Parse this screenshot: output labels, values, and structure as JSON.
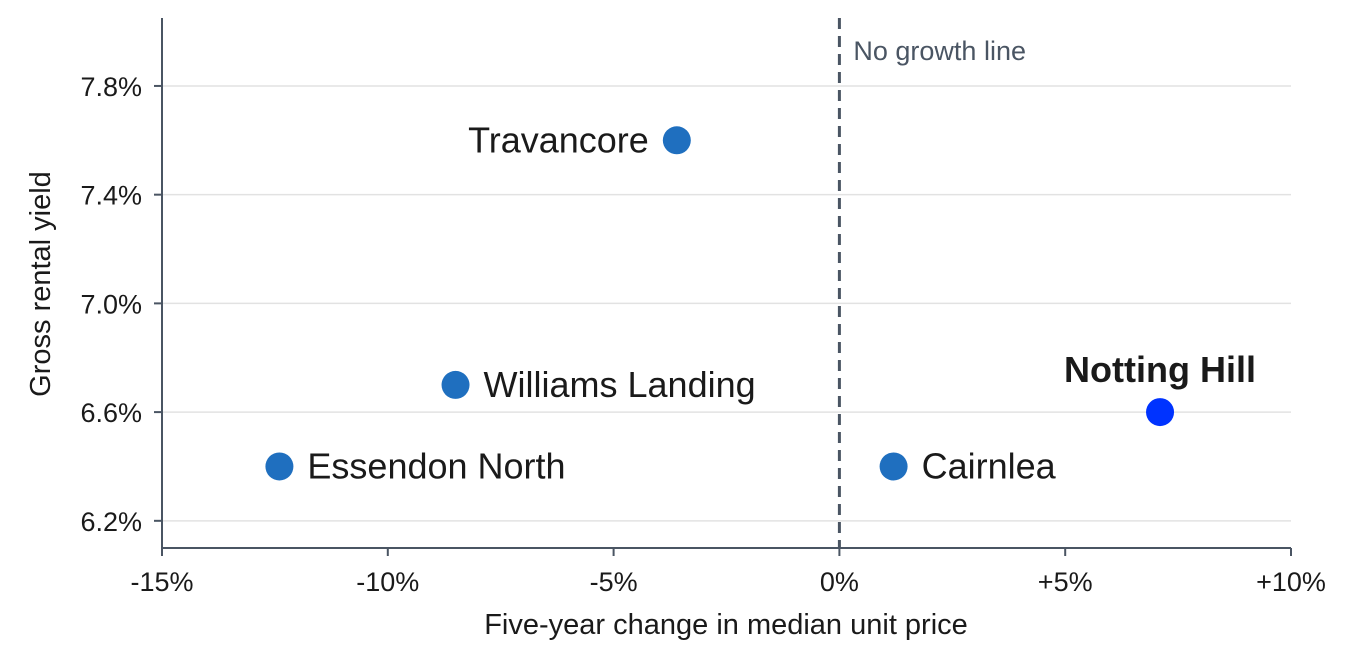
{
  "chart_data": {
    "type": "scatter",
    "xlabel": "Five-year change in median unit price",
    "ylabel": "Gross rental yield",
    "xlim": [
      -15,
      10
    ],
    "ylim": [
      6.1,
      8.05
    ],
    "x_ticks": [
      {
        "value": -15,
        "label": "-15%"
      },
      {
        "value": -10,
        "label": "-10%"
      },
      {
        "value": -5,
        "label": "-5%"
      },
      {
        "value": 0,
        "label": "0%"
      },
      {
        "value": 5,
        "label": "+5%"
      },
      {
        "value": 10,
        "label": "+10%"
      }
    ],
    "y_ticks": [
      {
        "value": 6.2,
        "label": "6.2%"
      },
      {
        "value": 6.6,
        "label": "6.6%"
      },
      {
        "value": 7.0,
        "label": "7.0%"
      },
      {
        "value": 7.4,
        "label": "7.4%"
      },
      {
        "value": 7.8,
        "label": "7.8%"
      }
    ],
    "grid": "horizontal",
    "reference_line": {
      "x": 0,
      "label": "No growth line"
    },
    "points": [
      {
        "label": "Travancore",
        "x": -3.6,
        "y": 7.6,
        "label_side": "left",
        "highlight": false
      },
      {
        "label": "Williams Landing",
        "x": -8.5,
        "y": 6.7,
        "label_side": "right",
        "highlight": false
      },
      {
        "label": "Essendon North",
        "x": -12.4,
        "y": 6.4,
        "label_side": "right",
        "highlight": false
      },
      {
        "label": "Cairnlea",
        "x": 1.2,
        "y": 6.4,
        "label_side": "right",
        "highlight": false
      },
      {
        "label": "Notting Hill",
        "x": 7.1,
        "y": 6.6,
        "label_side": "above",
        "highlight": true
      }
    ],
    "colors": {
      "point": "#1f6fbf",
      "highlight_point": "#0033ff",
      "axis": "#4a5563",
      "grid": "#e2e2e2",
      "reference_line": "#4a5563"
    }
  }
}
